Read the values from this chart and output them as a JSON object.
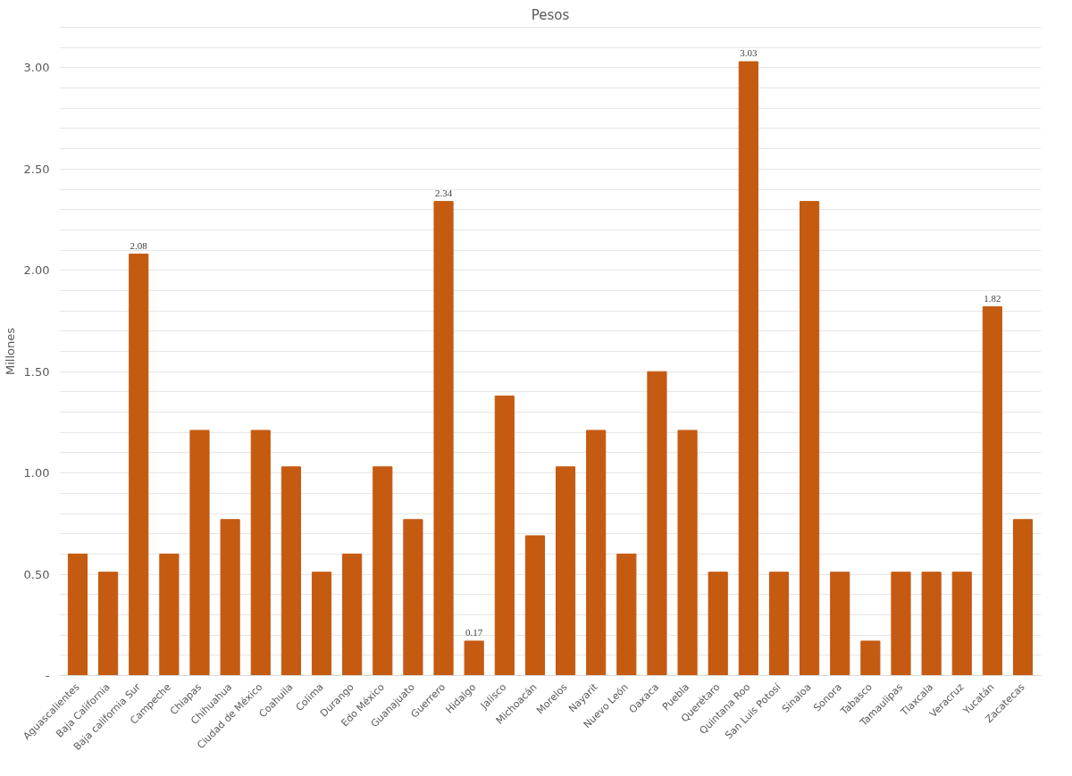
{
  "chart_data": {
    "type": "bar",
    "title": "Pesos",
    "ylabel": "Millones",
    "categories": [
      "Aguascalientes",
      "Baja California",
      "Baja california Sur",
      "Campeche",
      "Chiapas",
      "Chihuahua",
      "Ciudad de México",
      "Coahuila",
      "Colima",
      "Durango",
      "Edo México",
      "Guanajuato",
      "Guerrero",
      "Hidalgo",
      "Jalisco",
      "Michoacán",
      "Morelos",
      "Nayarit",
      "Nuevo León",
      "Oaxaca",
      "Puebla",
      "Querétaro",
      "Quintana Roo",
      "San Luis Potosí",
      "Sinaloa",
      "Sonora",
      "Tabasco",
      "Tamaulipas",
      "Tlaxcala",
      "Veracruz",
      "Yucatán",
      "Zacatecas"
    ],
    "values": [
      0.6,
      0.51,
      2.08,
      0.6,
      1.21,
      0.77,
      1.21,
      1.03,
      0.51,
      0.6,
      1.03,
      0.77,
      2.34,
      0.17,
      1.38,
      0.69,
      1.03,
      1.21,
      0.6,
      1.5,
      1.21,
      0.51,
      3.03,
      0.51,
      2.34,
      0.51,
      0.17,
      0.51,
      0.51,
      0.51,
      1.82,
      0.77
    ],
    "value_labels": [
      null,
      null,
      "2.08",
      null,
      null,
      null,
      null,
      null,
      null,
      null,
      null,
      null,
      "2.34",
      "0.17",
      null,
      null,
      null,
      null,
      null,
      null,
      null,
      null,
      "3.03",
      null,
      null,
      null,
      null,
      null,
      null,
      null,
      "1.82",
      null
    ],
    "color": "#c55a11",
    "ylim": [
      0,
      3.2
    ],
    "yticks": [
      {
        "value": 0,
        "label": "-"
      },
      {
        "value": 0.1,
        "label": null
      },
      {
        "value": 0.2,
        "label": null
      },
      {
        "value": 0.3,
        "label": null
      },
      {
        "value": 0.4,
        "label": null
      },
      {
        "value": 0.5,
        "label": "0.50"
      },
      {
        "value": 0.6,
        "label": null
      },
      {
        "value": 0.7,
        "label": null
      },
      {
        "value": 0.8,
        "label": null
      },
      {
        "value": 0.9,
        "label": null
      },
      {
        "value": 1.0,
        "label": "1.00"
      },
      {
        "value": 1.1,
        "label": null
      },
      {
        "value": 1.2,
        "label": null
      },
      {
        "value": 1.3,
        "label": null
      },
      {
        "value": 1.4,
        "label": null
      },
      {
        "value": 1.5,
        "label": "1.50"
      },
      {
        "value": 1.6,
        "label": null
      },
      {
        "value": 1.7,
        "label": null
      },
      {
        "value": 1.8,
        "label": null
      },
      {
        "value": 1.9,
        "label": null
      },
      {
        "value": 2.0,
        "label": "2.00"
      },
      {
        "value": 2.1,
        "label": null
      },
      {
        "value": 2.2,
        "label": null
      },
      {
        "value": 2.3,
        "label": null
      },
      {
        "value": 2.4,
        "label": null
      },
      {
        "value": 2.5,
        "label": "2.50"
      },
      {
        "value": 2.6,
        "label": null
      },
      {
        "value": 2.7,
        "label": null
      },
      {
        "value": 2.8,
        "label": null
      },
      {
        "value": 2.9,
        "label": null
      },
      {
        "value": 3.0,
        "label": "3.00"
      },
      {
        "value": 3.1,
        "label": null
      },
      {
        "value": 3.2,
        "label": null
      }
    ],
    "grid": "y"
  }
}
